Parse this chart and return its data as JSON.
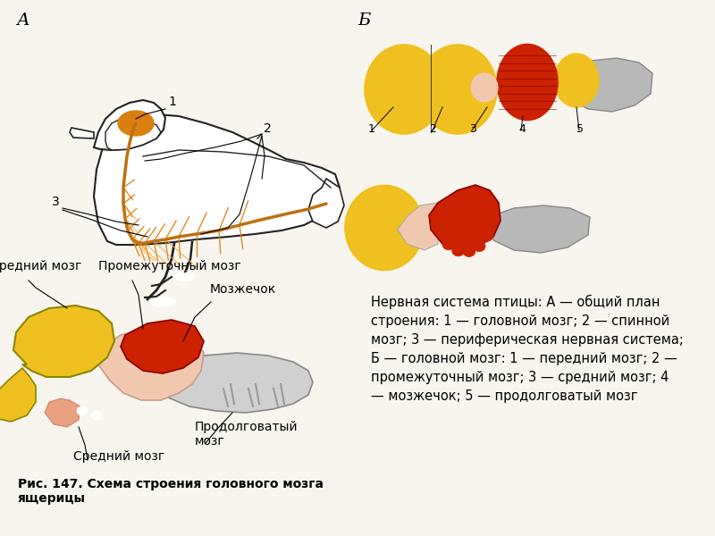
{
  "background_color": "#f8f5ee",
  "title_A": "А",
  "title_B": "Б",
  "caption": "Нервная система птицы: А — общий план\nстроения: 1 — головной мозг; 2 — спинной\nмозг; 3 — периферическая нервная система;\nБ — головной мозг: 1 — передний мозг; 2 —\nпромежуточный мозг; 3 — средний мозг; 4\n— мозжечок; 5 — продолговатый мозг",
  "fig_caption": "Рис. 147. Схема строения головного мозга\nящерицы",
  "label_peredny": "Передний мозг",
  "label_promezhut": "Промежуточный мозг",
  "label_mozzhechok": "Мозжечок",
  "label_sredny": "Средний мозг",
  "label_prodolg": "Продолговатый\nмозг",
  "color_yellow": "#f0c020",
  "color_yellow_light": "#f5d060",
  "color_red": "#cc2200",
  "color_pink": "#e8a080",
  "color_pink_light": "#f0c8b0",
  "color_gray": "#b8b8b8",
  "color_gray_light": "#d0d0d0",
  "color_orange": "#d98010",
  "color_orange_light": "#f0a830",
  "color_outline": "#222222",
  "color_spine": "#c07010"
}
